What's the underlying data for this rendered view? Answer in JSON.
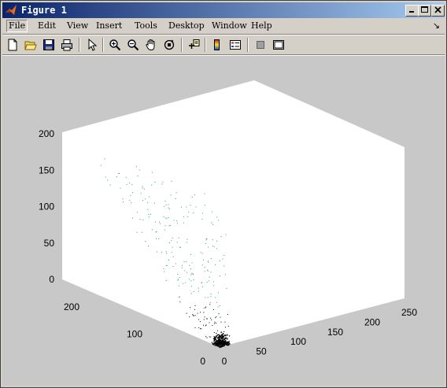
{
  "window": {
    "title": "Figure 1"
  },
  "menu": {
    "items": [
      "File",
      "Edit",
      "View",
      "Insert",
      "Tools",
      "Desktop",
      "Window",
      "Help"
    ],
    "dock_glyph": "↘"
  },
  "toolbar": {
    "buttons": [
      "new-figure",
      "open-file",
      "save-figure",
      "print-figure",
      "edit-plot",
      "zoom-in",
      "zoom-out",
      "pan",
      "rotate-3d",
      "data-cursor",
      "colorbar",
      "legend",
      "hide-plot-tools",
      "show-plot-tools"
    ]
  },
  "axes": {
    "z_ticks": [
      "0",
      "50",
      "100",
      "150",
      "200"
    ],
    "y_ticks": [
      "0",
      "100",
      "200"
    ],
    "x_ticks": [
      "0",
      "50",
      "100",
      "150",
      "200",
      "250"
    ]
  },
  "chart_data": {
    "type": "scatter",
    "title": "",
    "xlabel": "",
    "ylabel": "",
    "zlabel": "",
    "xlim": [
      0,
      250
    ],
    "ylim": [
      0,
      250
    ],
    "zlim": [
      0,
      200
    ],
    "x_ticks": [
      0,
      50,
      100,
      150,
      200,
      250
    ],
    "y_ticks": [
      0,
      100,
      200
    ],
    "z_ticks": [
      0,
      50,
      100,
      150,
      200
    ],
    "grid": false,
    "note_colors": {
      "low_z": "#000000",
      "high_z": "#2e9e6e"
    }
  }
}
